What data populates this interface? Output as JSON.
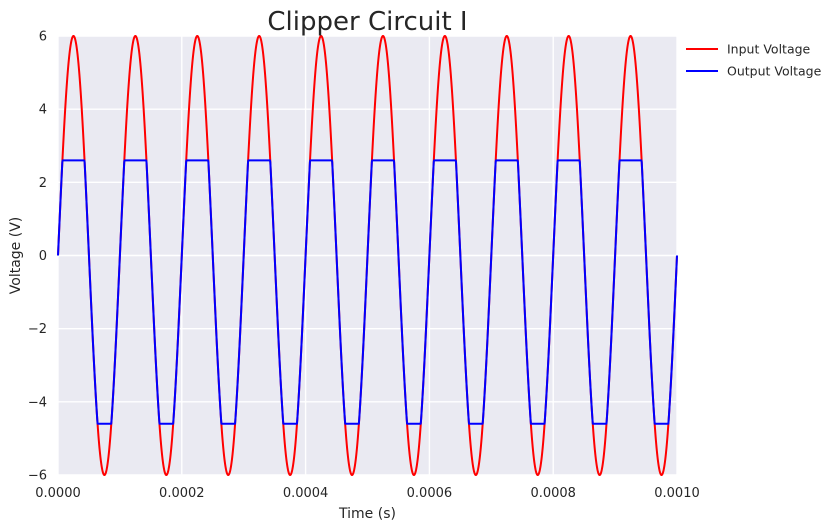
{
  "chart_data": {
    "type": "line",
    "title": "Clipper Circuit I",
    "xlabel": "Time (s)",
    "ylabel": "Voltage (V)",
    "xlim": [
      0,
      0.001
    ],
    "ylim": [
      -6,
      6
    ],
    "x_ticks": [
      0,
      0.0002,
      0.0004,
      0.0006,
      0.0008,
      0.001
    ],
    "x_tick_labels": [
      "0.0000",
      "0.0002",
      "0.0004",
      "0.0006",
      "0.0008",
      "0.0010"
    ],
    "y_ticks": [
      -6,
      -4,
      -2,
      0,
      2,
      4,
      6
    ],
    "y_tick_labels": [
      "−6",
      "−4",
      "−2",
      "0",
      "2",
      "4",
      "6"
    ],
    "grid": true,
    "legend_position": "outside-top-right",
    "series": [
      {
        "name": "Input Voltage",
        "color": "#ff0000",
        "function": "sine",
        "amplitude": 6,
        "frequency_hz": 10000,
        "x_range": [
          0,
          0.001
        ]
      },
      {
        "name": "Output Voltage",
        "color": "#0000ff",
        "function": "clipped_sine",
        "amplitude": 6,
        "frequency_hz": 10000,
        "clip_max": 2.6,
        "clip_min": -4.6,
        "x_range": [
          0,
          0.001
        ]
      }
    ],
    "background_color": "#eaeaf2",
    "grid_color": "#ffffff"
  }
}
